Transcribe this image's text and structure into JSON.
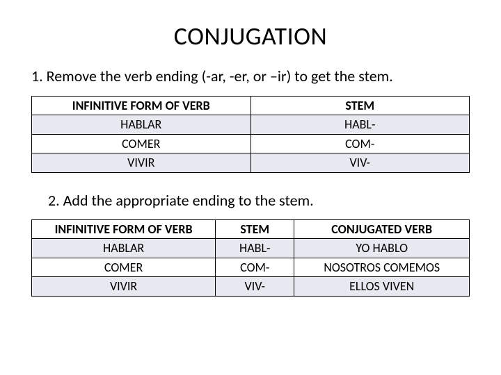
{
  "title": "CONJUGATION",
  "step1_text": "1. Remove the verb ending (-ar, -er, or –ir) to get the stem.",
  "step2_text": "2. Add the appropriate ending to the stem.",
  "table1": {
    "headers": {
      "c0": "INFINITIVE FORM OF VERB",
      "c1": "STEM"
    },
    "rows": [
      {
        "c0": "HABLAR",
        "c1": "HABL-"
      },
      {
        "c0": "COMER",
        "c1": "COM-"
      },
      {
        "c0": "VIVIR",
        "c1": "VIV-"
      }
    ],
    "col_widths_pct": [
      50,
      50
    ],
    "header_bg": "#ffffff",
    "row_odd_bg": "#e8e8f0",
    "row_even_bg": "#ffffff",
    "border_color": "#000000",
    "font_size_pt": 14
  },
  "table2": {
    "headers": {
      "c0": "INFINITIVE FORM OF VERB",
      "c1": "STEM",
      "c2": "CONJUGATED VERB"
    },
    "rows": [
      {
        "c0": "HABLAR",
        "c1": "HABL-",
        "c2": "YO HABLO"
      },
      {
        "c0": "COMER",
        "c1": "COM-",
        "c2": "NOSOTROS COMEMOS"
      },
      {
        "c0": "VIVIR",
        "c1": "VIV-",
        "c2": "ELLOS VIVEN"
      }
    ],
    "col_widths_pct": [
      42,
      18,
      40
    ],
    "header_bg": "#ffffff",
    "row_odd_bg": "#e8e8f0",
    "row_even_bg": "#ffffff",
    "border_color": "#000000",
    "font_size_pt": 14
  },
  "colors": {
    "page_bg": "#ffffff",
    "text": "#000000"
  },
  "typography": {
    "title_fontsize_pt": 27,
    "body_fontsize_pt": 17,
    "table_fontsize_pt": 14,
    "font_family": "Calibri"
  }
}
